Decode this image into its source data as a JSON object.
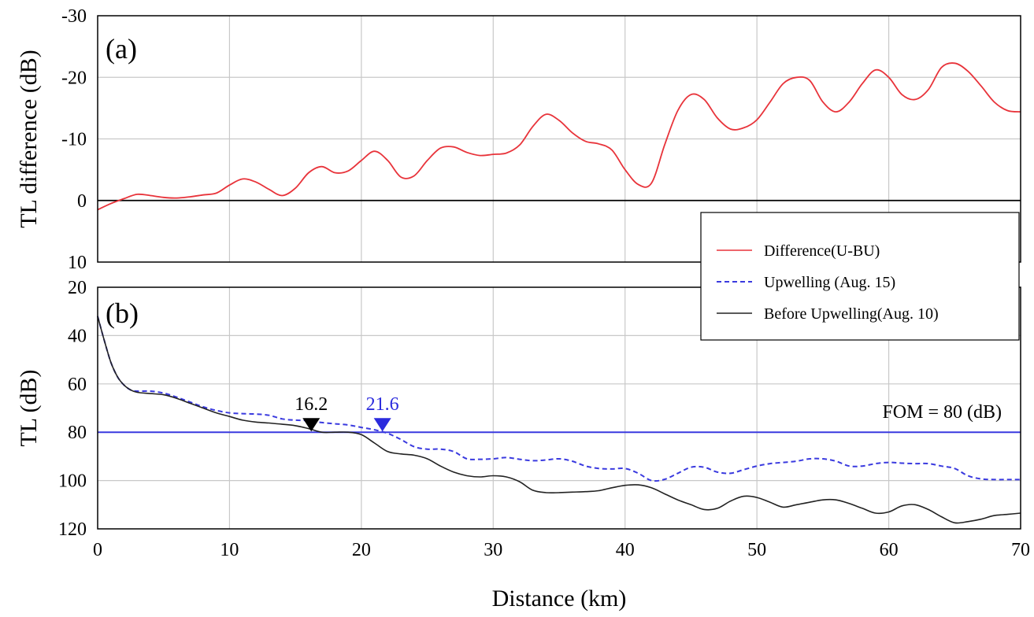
{
  "chart_data": [
    {
      "panel_label": "(a)",
      "type": "line",
      "ylabel": "TL difference (dB)",
      "xlim": [
        0,
        70
      ],
      "ylim": [
        10,
        -30
      ],
      "y_inverted": true,
      "yticks": [
        "-30",
        "-20",
        "-10",
        "0",
        "10"
      ],
      "grid": true,
      "reference_line": {
        "y": 0,
        "color": "#000000"
      },
      "series": [
        {
          "name": "Difference(U-BU)",
          "color": "#e8333a",
          "style": "solid",
          "x": [
            0,
            1,
            2,
            3,
            4,
            5,
            6,
            7,
            8,
            9,
            10,
            11,
            12,
            13,
            14,
            15,
            16,
            17,
            18,
            19,
            20,
            21,
            22,
            23,
            24,
            25,
            26,
            27,
            28,
            29,
            30,
            31,
            32,
            33,
            34,
            35,
            36,
            37,
            38,
            39,
            40,
            41,
            42,
            43,
            44,
            45,
            46,
            47,
            48,
            49,
            50,
            51,
            52,
            53,
            54,
            55,
            56,
            57,
            58,
            59,
            60,
            61,
            62,
            63,
            64,
            65,
            66,
            67,
            68,
            69,
            70
          ],
          "y": [
            1.5,
            0.5,
            -0.3,
            -1.0,
            -0.8,
            -0.5,
            -0.4,
            -0.6,
            -0.9,
            -1.2,
            -2.5,
            -3.5,
            -3.0,
            -1.8,
            -0.8,
            -2.0,
            -4.5,
            -5.5,
            -4.5,
            -4.8,
            -6.5,
            -8.0,
            -6.5,
            -3.8,
            -4.0,
            -6.5,
            -8.5,
            -8.7,
            -7.8,
            -7.3,
            -7.5,
            -7.7,
            -9.0,
            -12.0,
            -14.0,
            -13.0,
            -11.0,
            -9.6,
            -9.2,
            -8.2,
            -5.0,
            -2.6,
            -2.8,
            -9.0,
            -14.6,
            -17.2,
            -16.4,
            -13.4,
            -11.6,
            -11.8,
            -13.1,
            -16.0,
            -19.0,
            -20.0,
            -19.5,
            -16.0,
            -14.4,
            -16.0,
            -19.0,
            -21.2,
            -20.0,
            -17.2,
            -16.4,
            -18.0,
            -21.6,
            -22.3,
            -21.0,
            -18.6,
            -16.0,
            -14.6,
            -14.4
          ]
        }
      ]
    },
    {
      "panel_label": "(b)",
      "type": "line",
      "xlabel": "Distance (km)",
      "ylabel": "TL (dB)",
      "xlim": [
        0,
        70
      ],
      "ylim": [
        20,
        120
      ],
      "y_inverted": true,
      "xticks": [
        "0",
        "10",
        "20",
        "30",
        "40",
        "50",
        "60",
        "70"
      ],
      "yticks": [
        "20",
        "40",
        "60",
        "80",
        "100",
        "120"
      ],
      "grid": true,
      "reference_line": {
        "y": 80,
        "label": "FOM = 80 (dB)",
        "color": "#3a3adf"
      },
      "annotations": [
        {
          "x": 16.2,
          "y": 80,
          "label": "16.2",
          "color": "#000000"
        },
        {
          "x": 21.6,
          "y": 80,
          "label": "21.6",
          "color": "#2b2bdd"
        }
      ],
      "series": [
        {
          "name": "Upwelling (Aug. 15)",
          "color": "#3a3adf",
          "style": "dashed",
          "x": [
            0,
            0.5,
            1,
            1.5,
            2,
            2.5,
            3,
            4,
            5,
            6,
            7,
            8,
            9,
            10,
            11,
            12,
            13,
            14,
            15,
            16,
            17,
            18,
            19,
            20,
            21,
            22,
            23,
            24,
            25,
            26,
            27,
            28,
            29,
            30,
            31,
            32,
            33,
            34,
            35,
            36,
            37,
            38,
            39,
            40,
            41,
            42,
            43,
            44,
            45,
            46,
            47,
            48,
            49,
            50,
            51,
            52,
            53,
            54,
            55,
            56,
            57,
            58,
            59,
            60,
            61,
            62,
            63,
            64,
            65,
            66,
            67,
            68,
            69,
            70
          ],
          "y": [
            32,
            42,
            51,
            57,
            60.5,
            62.5,
            63,
            63,
            63.8,
            65.5,
            67.5,
            69.5,
            71,
            72,
            72.3,
            72.5,
            73,
            74.5,
            75,
            75.2,
            76,
            76.5,
            77,
            78,
            79,
            80.5,
            83,
            86,
            87,
            87,
            88,
            91,
            91.2,
            91,
            90.5,
            91.2,
            91.8,
            91.5,
            91,
            92,
            94,
            95,
            95.2,
            95,
            97,
            100,
            99.5,
            97,
            94.5,
            94.5,
            96.5,
            97,
            95.5,
            94,
            93,
            92.5,
            92,
            91,
            91,
            92,
            94,
            94,
            93,
            92.5,
            92.8,
            93,
            93,
            94,
            95,
            98,
            99.3,
            99.6,
            99.6,
            99.6
          ]
        },
        {
          "name": "Before Upwelling(Aug. 10)",
          "color": "#222222",
          "style": "solid",
          "x": [
            0,
            0.5,
            1,
            1.5,
            2,
            2.5,
            3,
            4,
            5,
            6,
            7,
            8,
            9,
            10,
            11,
            12,
            13,
            14,
            15,
            16,
            17,
            18,
            19,
            20,
            21,
            22,
            23,
            24,
            25,
            26,
            27,
            28,
            29,
            30,
            31,
            32,
            33,
            34,
            35,
            36,
            37,
            38,
            39,
            40,
            41,
            42,
            43,
            44,
            45,
            46,
            47,
            48,
            49,
            50,
            51,
            52,
            53,
            54,
            55,
            56,
            57,
            58,
            59,
            60,
            61,
            62,
            63,
            64,
            65,
            66,
            67,
            68,
            69,
            70
          ],
          "y": [
            32,
            42,
            51,
            57,
            60.5,
            62.5,
            63.5,
            64,
            64.5,
            66,
            68,
            70,
            72,
            73.5,
            75,
            75.8,
            76.2,
            76.7,
            77.3,
            78.5,
            80,
            80,
            80,
            81,
            84.5,
            88,
            89,
            89.5,
            91,
            94,
            96.5,
            98,
            98.5,
            98,
            98.5,
            100.5,
            104,
            105,
            105,
            104.8,
            104.6,
            104.2,
            103,
            102,
            101.8,
            103,
            105.5,
            108,
            110,
            112,
            111.5,
            108.5,
            106.5,
            107,
            109,
            111,
            110,
            109,
            108,
            108,
            109.5,
            111.5,
            113.5,
            113,
            110.5,
            110,
            112,
            115,
            117.5,
            117,
            116,
            114.5,
            114,
            113.5
          ]
        }
      ]
    }
  ],
  "legend": {
    "position": "right",
    "entries": [
      "Difference(U-BU)",
      "Upwelling (Aug. 15)",
      "Before Upwelling(Aug. 10)"
    ]
  }
}
